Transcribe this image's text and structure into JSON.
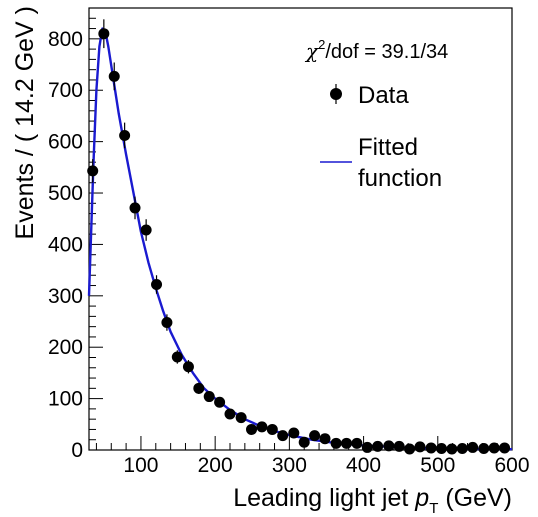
{
  "chart_data": {
    "type": "scatter",
    "ylabel": "Events / ( 14.2 GeV )",
    "xlabel_prefix": "Leading light jet ",
    "xlabel_var": "p",
    "xlabel_sub": "T",
    "xlabel_suffix": " (GeV)",
    "xlim": [
      30,
      600
    ],
    "ylim": [
      0,
      860
    ],
    "xticks": [
      100,
      200,
      300,
      400,
      500,
      600
    ],
    "yticks": [
      0,
      100,
      200,
      300,
      400,
      500,
      600,
      700,
      800
    ],
    "annotation": {
      "chi": "χ",
      "sup": "2",
      "rest": "/dof = 39.1/34"
    },
    "legend": {
      "data_label": "Data",
      "fit_label_line1": "Fitted",
      "fit_label_line2": "function"
    },
    "colors": {
      "fit": "#1a1ad0",
      "data": "#000000"
    },
    "series": [
      {
        "name": "Data",
        "x": [
          35,
          50,
          64,
          78,
          92,
          107,
          121,
          135,
          149,
          164,
          178,
          192,
          206,
          220,
          235,
          249,
          263,
          277,
          291,
          306,
          320,
          334,
          348,
          363,
          377,
          391,
          405,
          419,
          434,
          448,
          462,
          476,
          491,
          505,
          519,
          533,
          547,
          562,
          576,
          590
        ],
        "y": [
          543,
          810,
          727,
          612,
          471,
          428,
          322,
          248,
          181,
          162,
          120,
          104,
          93,
          70,
          63,
          40,
          45,
          40,
          28,
          33,
          15,
          28,
          22,
          13,
          13,
          13,
          5,
          7,
          8,
          7,
          2,
          6,
          4,
          3,
          2,
          3,
          5,
          3,
          4,
          4
        ],
        "yerr": [
          23,
          28,
          27,
          25,
          22,
          21,
          18,
          16,
          13,
          13,
          11,
          10,
          10,
          8,
          8,
          6,
          7,
          6,
          5,
          6,
          4,
          5,
          5,
          4,
          4,
          4,
          2,
          3,
          3,
          3,
          1.5,
          2.5,
          2,
          2,
          1.5,
          2,
          2,
          2,
          2,
          2
        ]
      },
      {
        "name": "Fitted function",
        "x": [
          30,
          36,
          40,
          44,
          48,
          52,
          56,
          62,
          70,
          80,
          90,
          100,
          110,
          120,
          130,
          140,
          155,
          170,
          185,
          200,
          220,
          240,
          260,
          280,
          300,
          330,
          360,
          400,
          450,
          500,
          550,
          600
        ],
        "y": [
          300,
          560,
          700,
          785,
          820,
          815,
          785,
          730,
          655,
          575,
          500,
          425,
          365,
          315,
          270,
          230,
          185,
          150,
          120,
          100,
          78,
          60,
          47,
          37,
          29,
          20,
          14,
          9,
          5,
          3,
          2,
          1.5
        ]
      }
    ]
  }
}
